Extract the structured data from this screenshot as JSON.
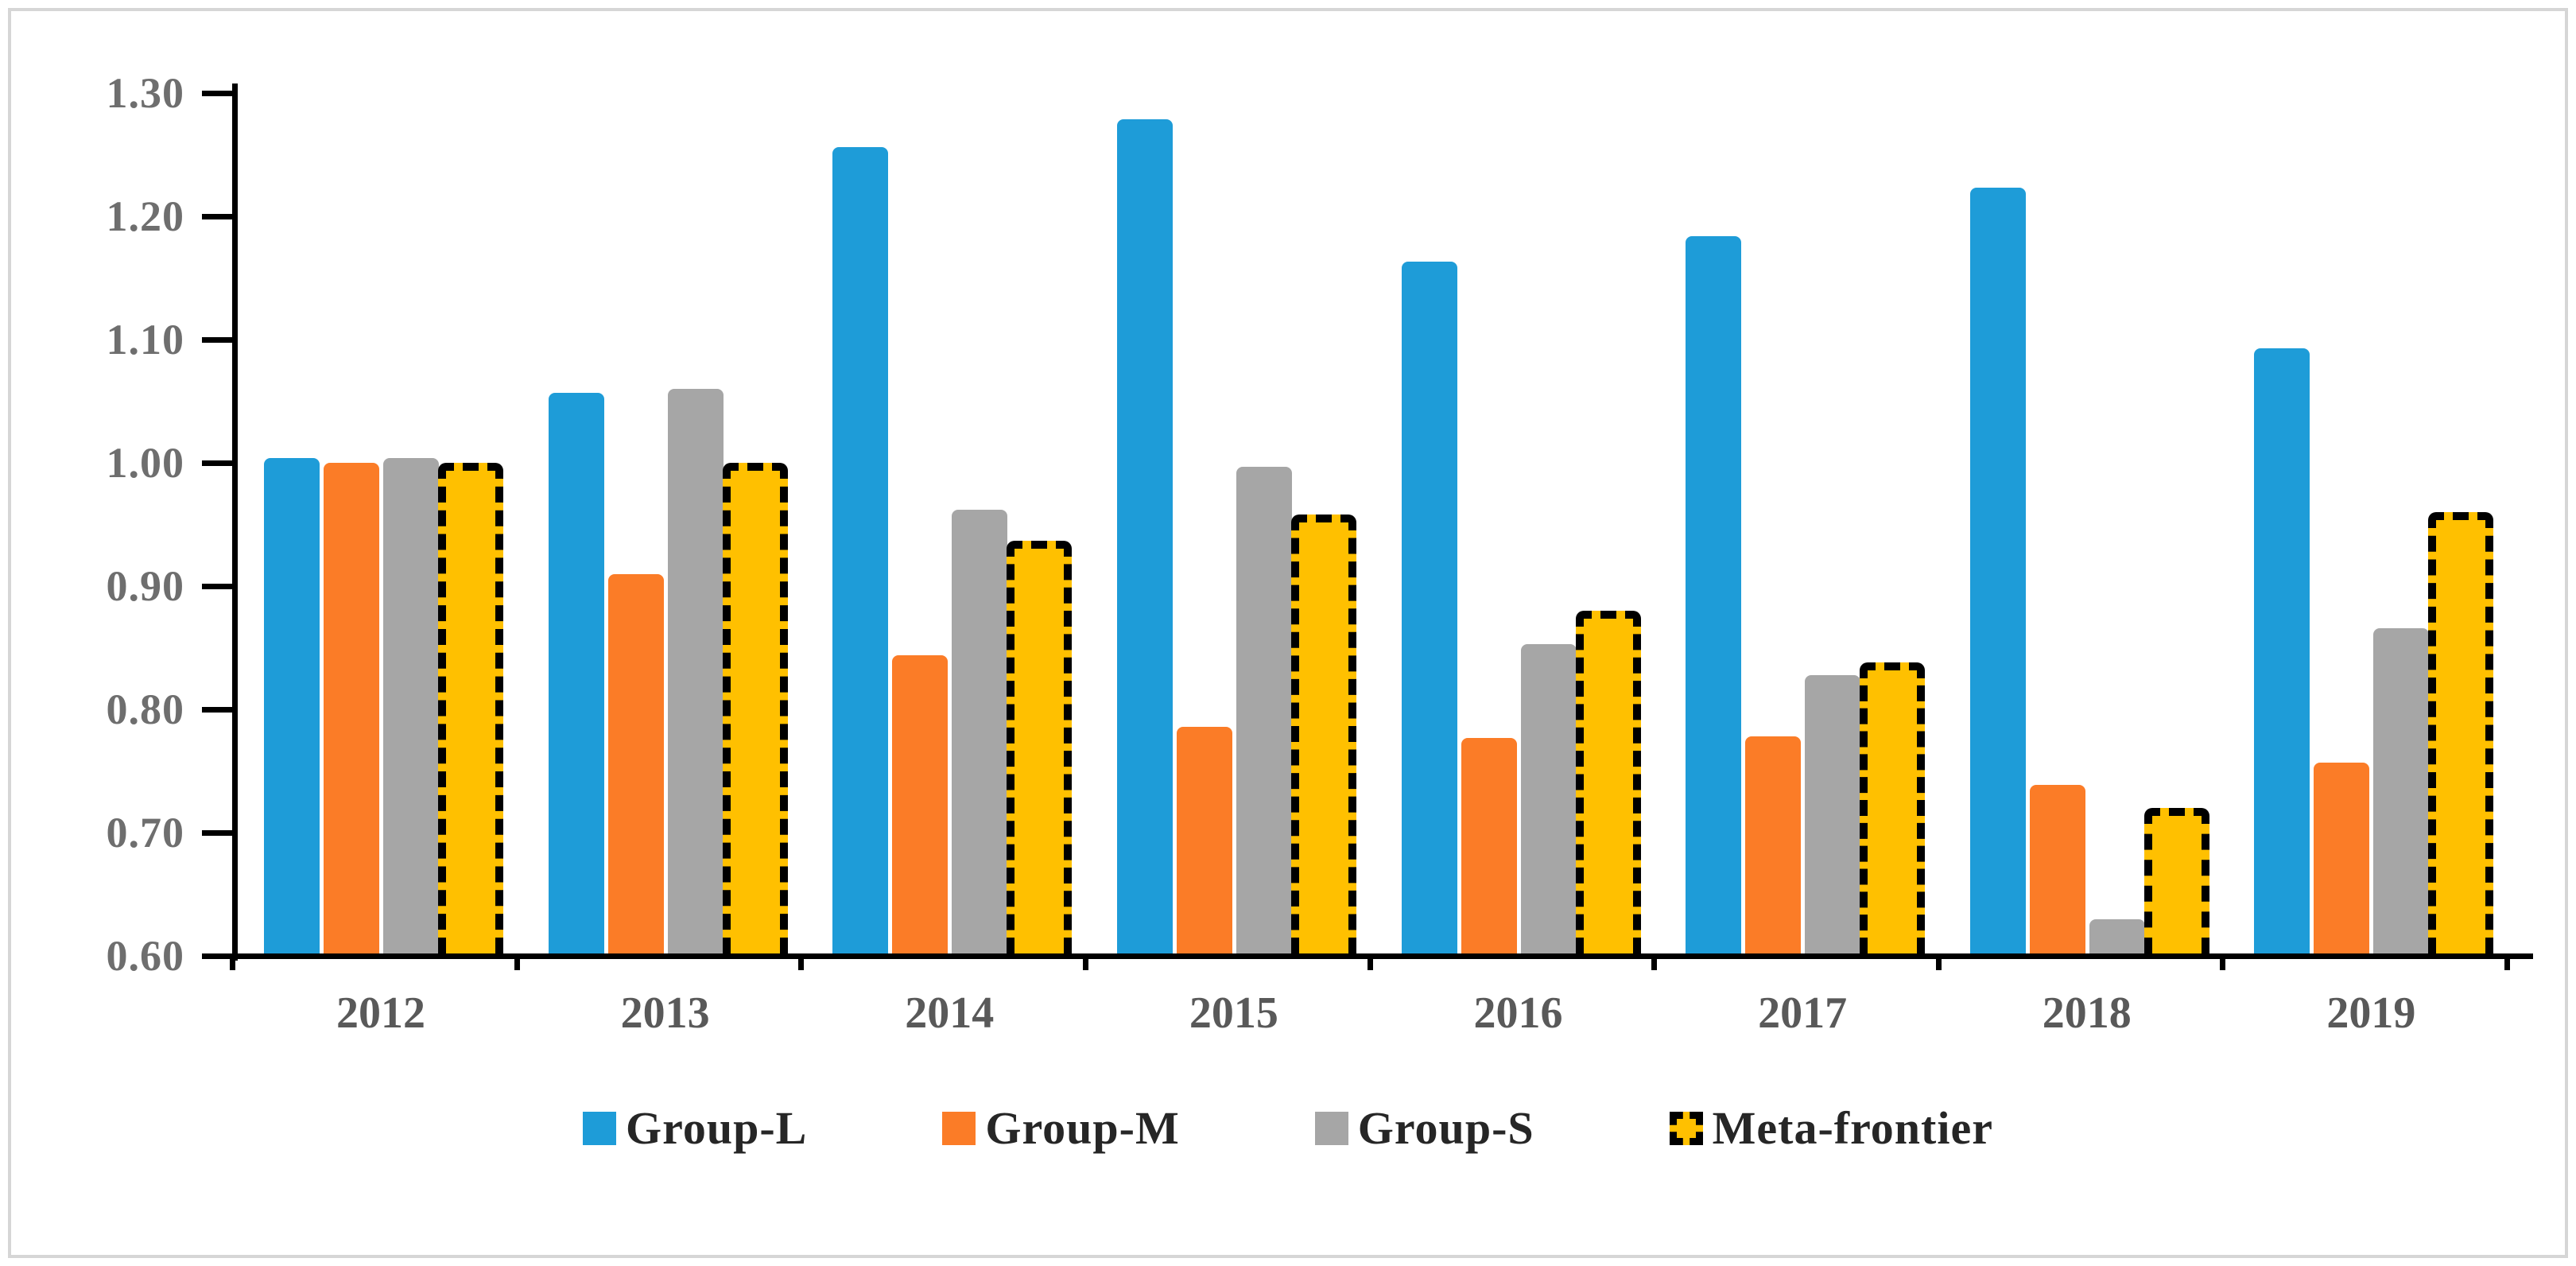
{
  "chart_data": {
    "type": "bar",
    "title": "",
    "xlabel": "",
    "ylabel": "",
    "categories": [
      "2012",
      "2013",
      "2014",
      "2015",
      "2016",
      "2017",
      "2018",
      "2019"
    ],
    "series": [
      {
        "name": "Group-L",
        "color": "#1e9cd8",
        "marker": "solid-square",
        "values": [
          1.004,
          1.057,
          1.256,
          1.279,
          1.163,
          1.184,
          1.223,
          1.093
        ]
      },
      {
        "name": "Group-M",
        "color": "#fb7c27",
        "marker": "solid-square",
        "values": [
          1.0,
          0.91,
          0.844,
          0.786,
          0.777,
          0.778,
          0.739,
          0.757
        ]
      },
      {
        "name": "Group-S",
        "color": "#a6a6a6",
        "marker": "solid-square",
        "values": [
          1.004,
          1.06,
          0.962,
          0.997,
          0.853,
          0.828,
          0.63,
          0.866
        ]
      },
      {
        "name": "Meta-frontier",
        "color": "#ffc000",
        "marker": "dashed-outline-square",
        "outline": "#000000",
        "values": [
          1.0,
          1.0,
          0.937,
          0.958,
          0.88,
          0.838,
          0.72,
          0.96
        ]
      }
    ],
    "ylim": [
      0.6,
      1.3
    ],
    "y_tick_step": 0.1,
    "y_tick_labels": [
      "1.30",
      "1.20",
      "1.10",
      "1.00",
      "0.90",
      "0.80",
      "0.70",
      "0.60"
    ],
    "grid": false,
    "legend_position": "bottom-center",
    "axis_color": "#000000",
    "ytick_label_color": "#6e6e6e",
    "xtick_label_color": "#595959",
    "frame_border_color": "#d6d6d6"
  },
  "legend": {
    "items": [
      "Group-L",
      "Group-M",
      "Group-S",
      "Meta-frontier"
    ]
  }
}
